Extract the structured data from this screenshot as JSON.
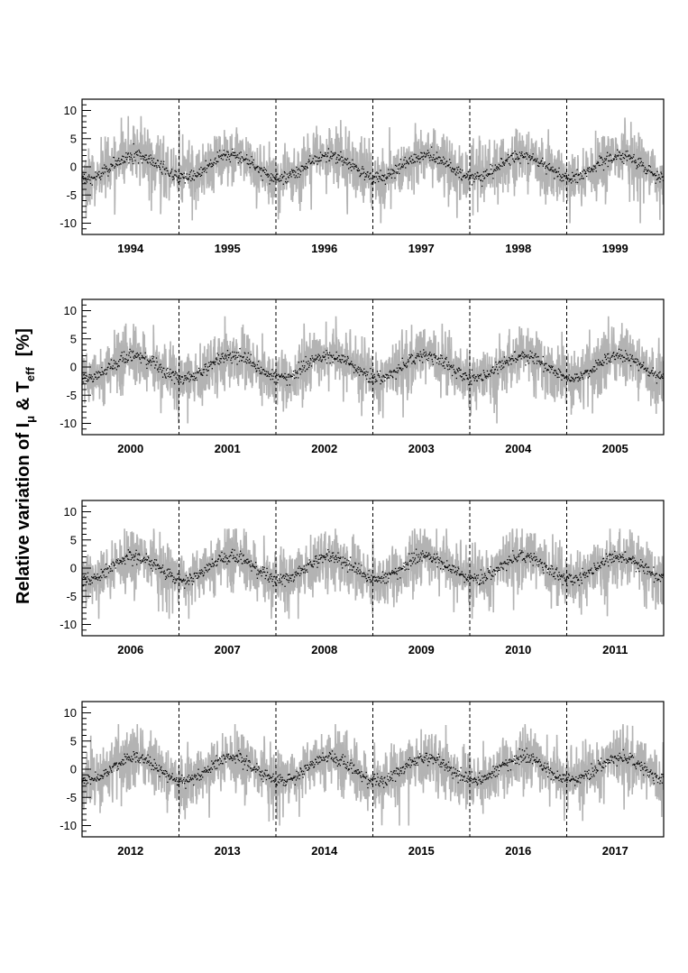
{
  "ylabel": {
    "main": "Relative variation of I",
    "sub_mu": "μ",
    "amp": " & T",
    "sub_eff": "eff",
    "unit": "[%]"
  },
  "colors": {
    "raw": "#b3b3b3",
    "smooth": "#000000",
    "axis": "#000000",
    "divider": "#000000"
  },
  "chart_data": [
    {
      "type": "line",
      "ylim": [
        -12,
        12
      ],
      "yticks": [
        10,
        5,
        0,
        -5,
        -10
      ],
      "years": [
        "1994",
        "1995",
        "1996",
        "1997",
        "1998",
        "1999"
      ],
      "series": [
        {
          "style": "gray",
          "amplitude_band": [
            -10,
            9
          ]
        },
        {
          "style": "black-dots",
          "seasonal_amplitude": 2
        }
      ]
    },
    {
      "type": "line",
      "ylim": [
        -12,
        12
      ],
      "yticks": [
        10,
        5,
        0,
        -5,
        -10
      ],
      "years": [
        "2000",
        "2001",
        "2002",
        "2003",
        "2004",
        "2005"
      ],
      "series": [
        {
          "style": "gray",
          "amplitude_band": [
            -10,
            9
          ]
        },
        {
          "style": "black-dots",
          "seasonal_amplitude": 2
        }
      ]
    },
    {
      "type": "line",
      "ylim": [
        -12,
        12
      ],
      "yticks": [
        10,
        5,
        0,
        -5,
        -10
      ],
      "years": [
        "2006",
        "2007",
        "2008",
        "2009",
        "2010",
        "2011"
      ],
      "series": [
        {
          "style": "gray",
          "amplitude_band": [
            -9,
            7
          ]
        },
        {
          "style": "black-dots",
          "seasonal_amplitude": 2
        }
      ]
    },
    {
      "type": "line",
      "ylim": [
        -12,
        12
      ],
      "yticks": [
        10,
        5,
        0,
        -5,
        -10
      ],
      "years": [
        "2012",
        "2013",
        "2014",
        "2015",
        "2016",
        "2017"
      ],
      "series": [
        {
          "style": "gray",
          "amplitude_band": [
            -10,
            8
          ]
        },
        {
          "style": "black-dots",
          "seasonal_amplitude": 2
        }
      ]
    }
  ]
}
